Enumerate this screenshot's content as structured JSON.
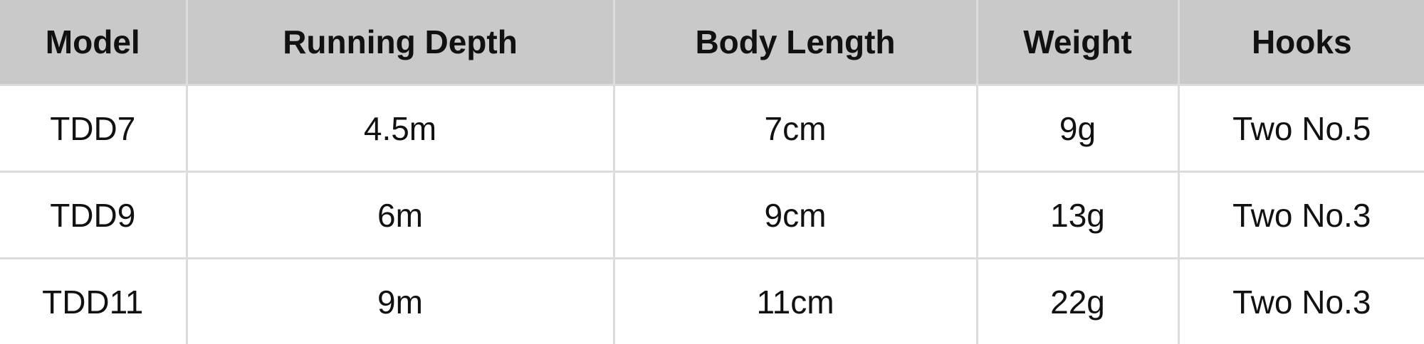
{
  "table": {
    "headers": [
      "Model",
      "Running Depth",
      "Body Length",
      "Weight",
      "Hooks"
    ],
    "rows": [
      [
        "TDD7",
        "4.5m",
        "7cm",
        "9g",
        "Two No.5"
      ],
      [
        "TDD9",
        "6m",
        "9cm",
        "13g",
        "Two No.3"
      ],
      [
        "TDD11",
        "9m",
        "11cm",
        "22g",
        "Two No.3"
      ]
    ]
  },
  "colors": {
    "header_bg": "#c9c9c9",
    "border": "#dcdcdc"
  }
}
